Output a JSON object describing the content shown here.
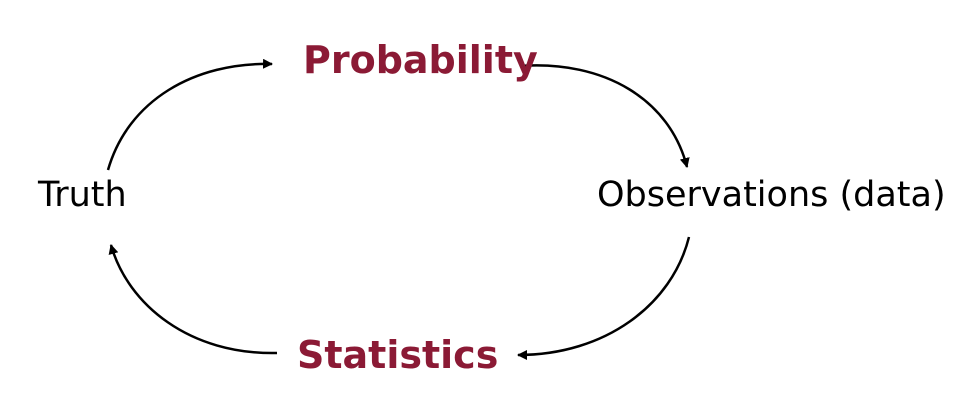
{
  "diagram": {
    "nodes": {
      "probability": "Probability",
      "truth": "Truth",
      "observations": "Observations (data)",
      "statistics": "Statistics"
    },
    "colors": {
      "accent": "#8b1a35",
      "text": "#000000",
      "arrow": "#000000"
    },
    "edges": [
      {
        "from": "truth",
        "to": "probability"
      },
      {
        "from": "probability",
        "to": "observations"
      },
      {
        "from": "observations",
        "to": "statistics"
      },
      {
        "from": "statistics",
        "to": "truth"
      }
    ]
  }
}
